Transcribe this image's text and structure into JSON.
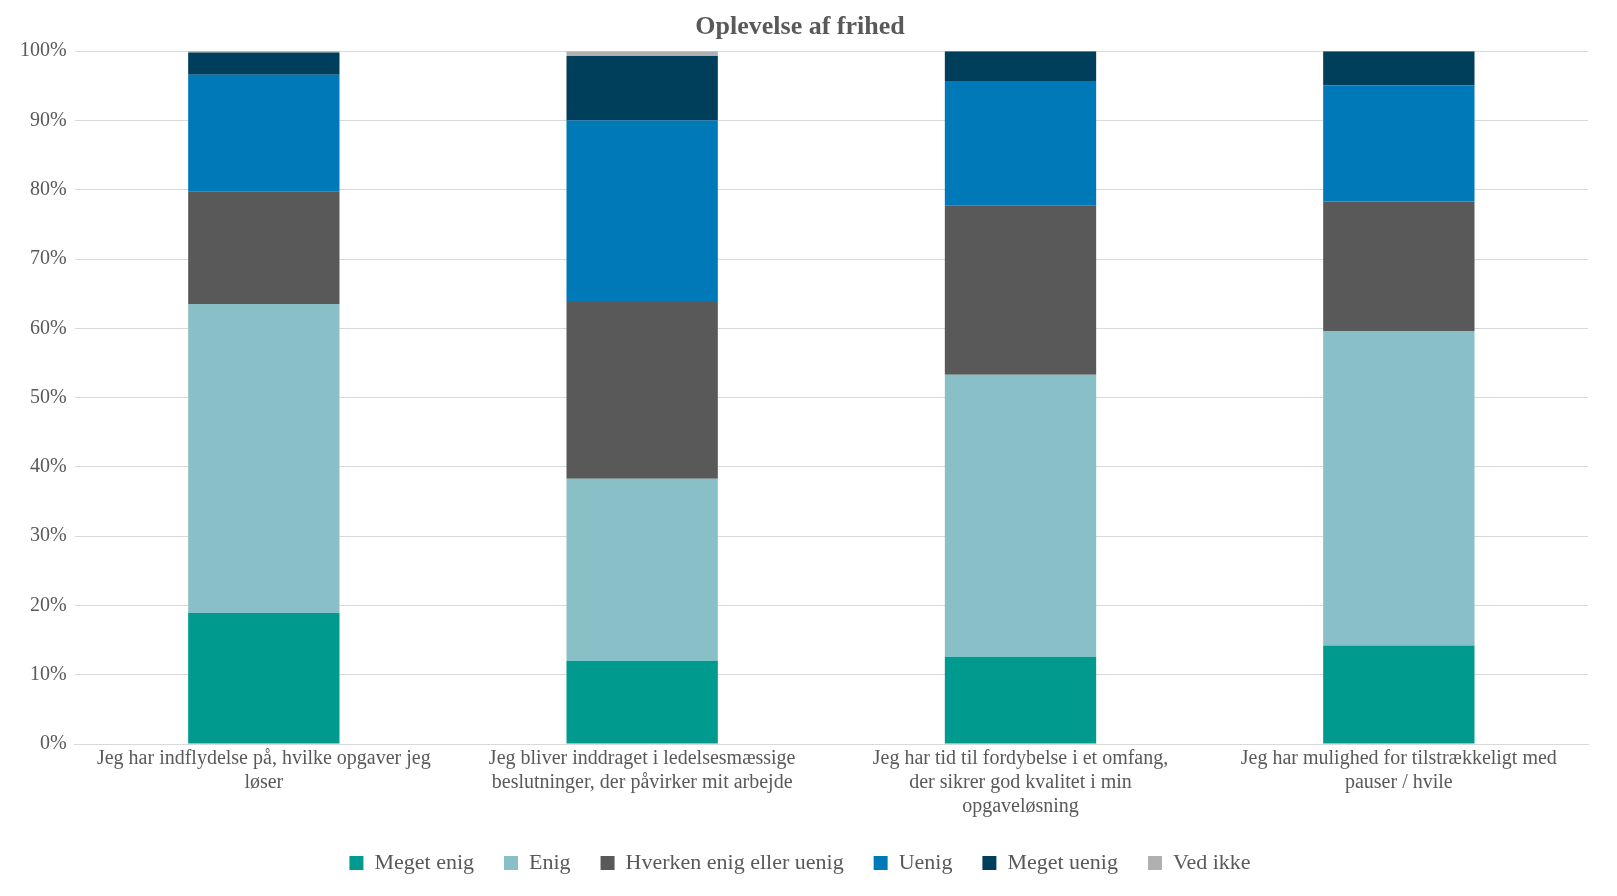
{
  "chart_data": {
    "type": "bar",
    "title": "Oplevelse af frihed",
    "stacked": true,
    "categories": [
      "Jeg har indflydelse på, hvilke opgaver jeg løser",
      "Jeg bliver inddraget i ledelsesmæssige beslutninger, der påvirker mit arbejde",
      "Jeg har tid til fordybelse i et omfang, der sikrer god kvalitet i min opgaveløsning",
      "Jeg har mulighed for tilstrækkeligt med pauser / hvile"
    ],
    "series": [
      {
        "name": "Meget enig",
        "color": "#009a8f",
        "values": [
          18.9,
          12.0,
          12.6,
          14.2
        ]
      },
      {
        "name": "Enig",
        "color": "#89c0c8",
        "values": [
          44.6,
          26.3,
          40.7,
          45.4
        ]
      },
      {
        "name": "Hverken enig eller uenig",
        "color": "#595959",
        "values": [
          16.3,
          25.5,
          24.4,
          18.7
        ]
      },
      {
        "name": "Uenig",
        "color": "#0079b8",
        "values": [
          16.8,
          26.2,
          18.0,
          16.8
        ]
      },
      {
        "name": "Meget uenig",
        "color": "#003f5c",
        "values": [
          3.2,
          9.3,
          4.3,
          4.9
        ]
      },
      {
        "name": "Ved ikke",
        "color": "#b0b0b0",
        "values": [
          0.3,
          0.7,
          0,
          0
        ]
      }
    ],
    "ylim": [
      0,
      100
    ],
    "yticks": [
      {
        "value": 0,
        "label": "0%"
      },
      {
        "value": 10,
        "label": "10%"
      },
      {
        "value": 20,
        "label": "20%"
      },
      {
        "value": 30,
        "label": "30%"
      },
      {
        "value": 40,
        "label": "40%"
      },
      {
        "value": 50,
        "label": "50%"
      },
      {
        "value": 60,
        "label": "60%"
      },
      {
        "value": 70,
        "label": "70%"
      },
      {
        "value": 80,
        "label": "80%"
      },
      {
        "value": 90,
        "label": "90%"
      },
      {
        "value": 100,
        "label": "100%"
      }
    ],
    "grid": "y",
    "legend": "bottom"
  }
}
